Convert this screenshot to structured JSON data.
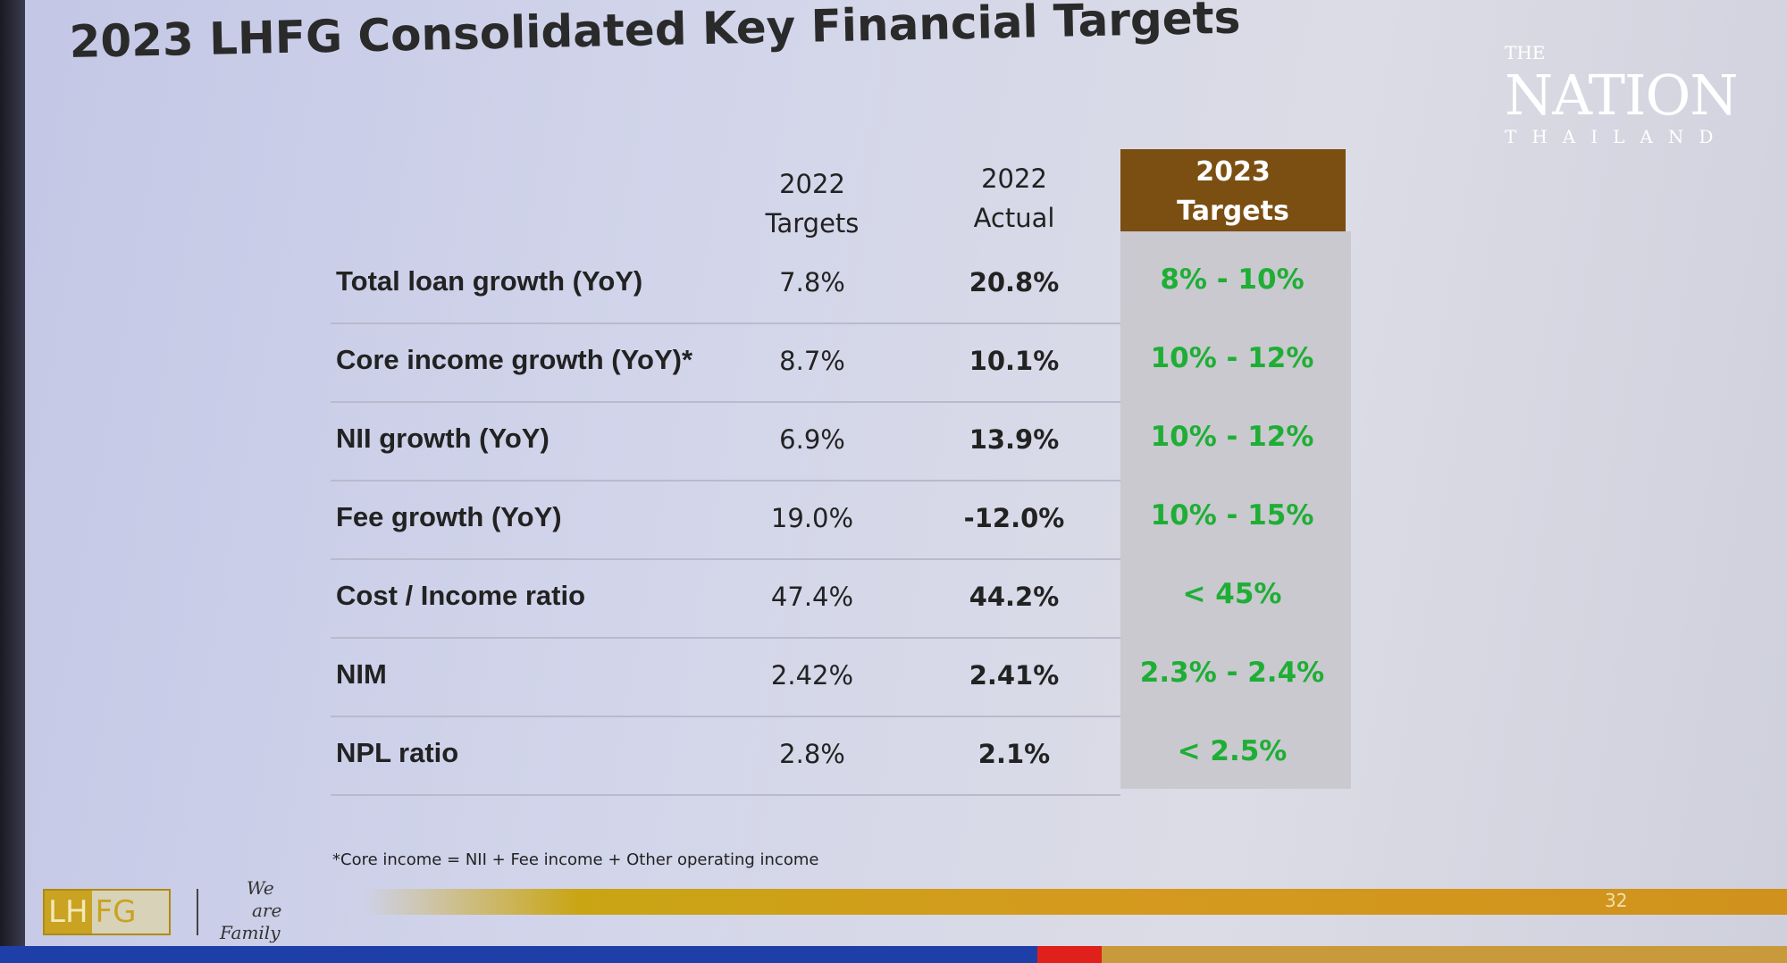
{
  "title": "2023 LHFG Consolidated Key Financial Targets",
  "logo": {
    "the": "THE",
    "nation": "NATION",
    "thailand": "THAILAND"
  },
  "columns": {
    "c1": [
      "2022",
      "Targets"
    ],
    "c2": [
      "2022",
      "Actual"
    ],
    "c3": [
      "2023",
      "Targets"
    ]
  },
  "rows": [
    {
      "label": "Total loan growth (YoY)",
      "t2022": "7.8%",
      "a2022": "20.8%",
      "t2023": "8% - 10%"
    },
    {
      "label": "Core income growth (YoY)*",
      "t2022": "8.7%",
      "a2022": "10.1%",
      "t2023": "10% - 12%"
    },
    {
      "label": "NII growth (YoY)",
      "t2022": "6.9%",
      "a2022": "13.9%",
      "t2023": "10% - 12%"
    },
    {
      "label": "Fee growth (YoY)",
      "t2022": "19.0%",
      "a2022": "-12.0%",
      "t2023": "10% - 15%"
    },
    {
      "label": "Cost / Income ratio",
      "t2022": "47.4%",
      "a2022": "44.2%",
      "t2023": "< 45%"
    },
    {
      "label": "NIM",
      "t2022": "2.42%",
      "a2022": "2.41%",
      "t2023": "2.3% - 2.4%"
    },
    {
      "label": "NPL ratio",
      "t2022": "2.8%",
      "a2022": "2.1%",
      "t2023": "< 2.5%"
    }
  ],
  "footnote": "*Core income = NII + Fee income + Other operating income",
  "footer": {
    "lh": "LH",
    "fg": "FG",
    "slogan": [
      "We",
      "are",
      "Family"
    ],
    "page": "32"
  },
  "colors": {
    "header": "#7b4e12",
    "target_text": "#1fae35",
    "highlight_bg": "#c9c9cf",
    "gold_bar": "#d49a1e"
  }
}
